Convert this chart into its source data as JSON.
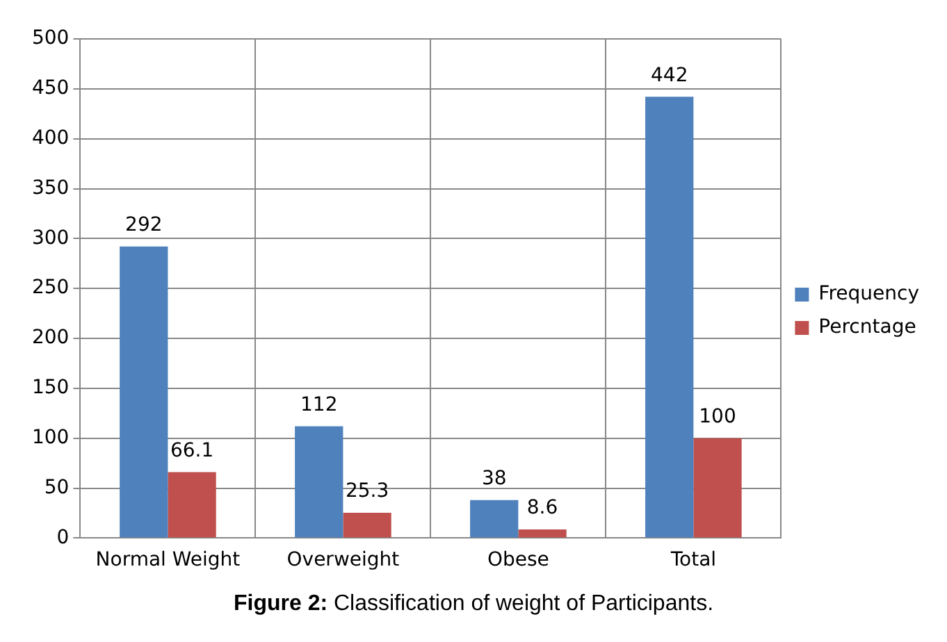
{
  "chart_data": {
    "type": "bar",
    "categories": [
      "Normal Weight",
      "Overweight",
      "Obese",
      "Total"
    ],
    "series": [
      {
        "name": "Frequency",
        "color": "#4f81bd",
        "values": [
          292,
          112,
          38,
          442
        ]
      },
      {
        "name": "Percntage",
        "color": "#c0504d",
        "values": [
          66.1,
          25.3,
          8.6,
          100
        ]
      }
    ],
    "ylim": [
      0,
      500
    ],
    "yticks": [
      0,
      50,
      100,
      150,
      200,
      250,
      300,
      350,
      400,
      450,
      500
    ],
    "grid": true,
    "legend": "right",
    "data_labels": true,
    "annotations": [
      "Figure 2: Classification of weight of Participants."
    ]
  }
}
